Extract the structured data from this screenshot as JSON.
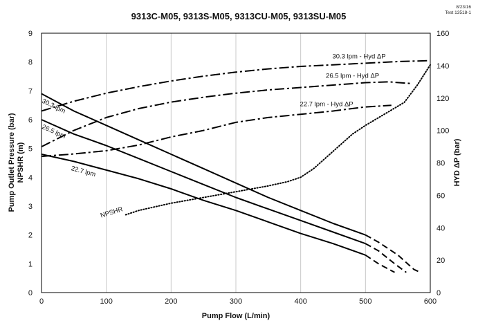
{
  "chart_data": {
    "type": "line",
    "title": "9313C-M05, 9313S-M05, 9313CU-M05, 9313SU-M05",
    "date": "8/23/16",
    "test_id": "Test 13518-1",
    "xlabel": "Pump Flow (L/min)",
    "ylabel_left_lines": [
      "Pump Outlet Pressure (bar)",
      "NPSHR (m)"
    ],
    "ylabel_right": "HYD ΔP (bar)",
    "xlim": [
      0,
      600
    ],
    "ylim_left": [
      0,
      9
    ],
    "ylim_right": [
      0,
      160
    ],
    "x_ticks": [
      "0",
      "100",
      "200",
      "300",
      "400",
      "500",
      "600"
    ],
    "y_left_ticks": [
      "0",
      "1",
      "2",
      "3",
      "4",
      "5",
      "6",
      "7",
      "8",
      "9"
    ],
    "y_right_ticks": [
      "0",
      "20",
      "40",
      "60",
      "80",
      "100",
      "120",
      "140",
      "160"
    ],
    "grid": "vertical",
    "series": [
      {
        "name": "30.3 lpm",
        "axis": "left",
        "style": "solid",
        "x": [
          0,
          50,
          100,
          150,
          200,
          250,
          300,
          350,
          400,
          450,
          500
        ],
        "y": [
          6.9,
          6.3,
          5.8,
          5.3,
          4.8,
          4.3,
          3.8,
          3.3,
          2.85,
          2.4,
          2.0
        ],
        "extension": {
          "style": "dashed",
          "x": [
            500,
            520,
            550,
            575,
            585
          ],
          "y": [
            2.0,
            1.75,
            1.3,
            0.8,
            0.7
          ]
        }
      },
      {
        "name": "26.5 lpm",
        "axis": "left",
        "style": "solid",
        "x": [
          0,
          50,
          100,
          150,
          200,
          250,
          300,
          350,
          400,
          450,
          500
        ],
        "y": [
          6.0,
          5.5,
          5.1,
          4.65,
          4.2,
          3.75,
          3.3,
          2.9,
          2.5,
          2.1,
          1.7
        ],
        "extension": {
          "style": "dashed",
          "x": [
            500,
            520,
            545,
            563
          ],
          "y": [
            1.7,
            1.45,
            1.0,
            0.7
          ]
        }
      },
      {
        "name": "22.7 lpm",
        "axis": "left",
        "style": "solid",
        "x": [
          0,
          50,
          100,
          150,
          200,
          250,
          300,
          350,
          400,
          450,
          500
        ],
        "y": [
          4.8,
          4.55,
          4.25,
          3.95,
          3.6,
          3.2,
          2.85,
          2.45,
          2.05,
          1.7,
          1.3
        ],
        "extension": {
          "style": "dashed",
          "x": [
            500,
            520,
            545
          ],
          "y": [
            1.3,
            1.0,
            0.7
          ]
        }
      },
      {
        "name": "30.3 lpm - Hyd ΔP",
        "axis": "right",
        "style": "dash-dot",
        "x": [
          0,
          50,
          100,
          150,
          200,
          250,
          300,
          350,
          400,
          450,
          500,
          550,
          595
        ],
        "y": [
          112,
          118,
          123,
          127,
          130.5,
          133.5,
          136,
          138,
          139.5,
          140.5,
          141.5,
          142.5,
          143
        ]
      },
      {
        "name": "26.5 lpm - Hyd ΔP",
        "axis": "right",
        "style": "dash-dot",
        "x": [
          0,
          50,
          100,
          150,
          200,
          250,
          300,
          350,
          400,
          450,
          500,
          535,
          570
        ],
        "y": [
          90,
          100,
          108,
          113.5,
          117.5,
          120.5,
          123,
          125,
          126.5,
          128,
          129.5,
          130,
          129
        ]
      },
      {
        "name": "22.7 lpm - Hyd ΔP",
        "axis": "right",
        "style": "dash-dot",
        "x": [
          0,
          50,
          100,
          150,
          200,
          250,
          300,
          350,
          400,
          450,
          500,
          540
        ],
        "y": [
          84,
          85.5,
          87.5,
          91,
          96,
          100,
          105,
          108,
          110,
          112,
          114.5,
          115.5
        ]
      },
      {
        "name": "NPSHR",
        "axis": "left",
        "style": "dotted",
        "x": [
          130,
          150,
          200,
          250,
          300,
          350,
          380,
          400,
          420,
          450,
          480,
          500,
          530,
          560,
          580,
          600
        ],
        "y": [
          2.7,
          2.85,
          3.1,
          3.3,
          3.5,
          3.7,
          3.85,
          4.0,
          4.3,
          4.9,
          5.5,
          5.8,
          6.2,
          6.6,
          7.2,
          7.9
        ]
      }
    ],
    "annotations": [
      {
        "text": "30.3 lpm",
        "x": 0,
        "y": 6.6,
        "angle": 26,
        "target_axis": "left"
      },
      {
        "text": "26.5 lpm",
        "x": 0,
        "y": 5.7,
        "angle": 24,
        "target_axis": "left"
      },
      {
        "text": "22.7 lpm",
        "x": 45,
        "y": 4.25,
        "angle": 15,
        "target_axis": "left"
      },
      {
        "text": "NPSHR",
        "x": 92,
        "y": 2.6,
        "angle": -17,
        "target_axis": "left"
      },
      {
        "text": "30.3 lpm - Hyd ΔP",
        "x": 490,
        "y": 144.5,
        "angle": 0,
        "target_axis": "right"
      },
      {
        "text": "26.5 lpm - Hyd ΔP",
        "x": 480,
        "y": 132.5,
        "angle": 0,
        "target_axis": "right"
      },
      {
        "text": "22.7 lpm - Hyd ΔP",
        "x": 440,
        "y": 115,
        "angle": 0,
        "target_axis": "right"
      }
    ],
    "colors": {
      "line": "#000000",
      "grid": "#c8c8c8",
      "text": "#111111"
    }
  }
}
